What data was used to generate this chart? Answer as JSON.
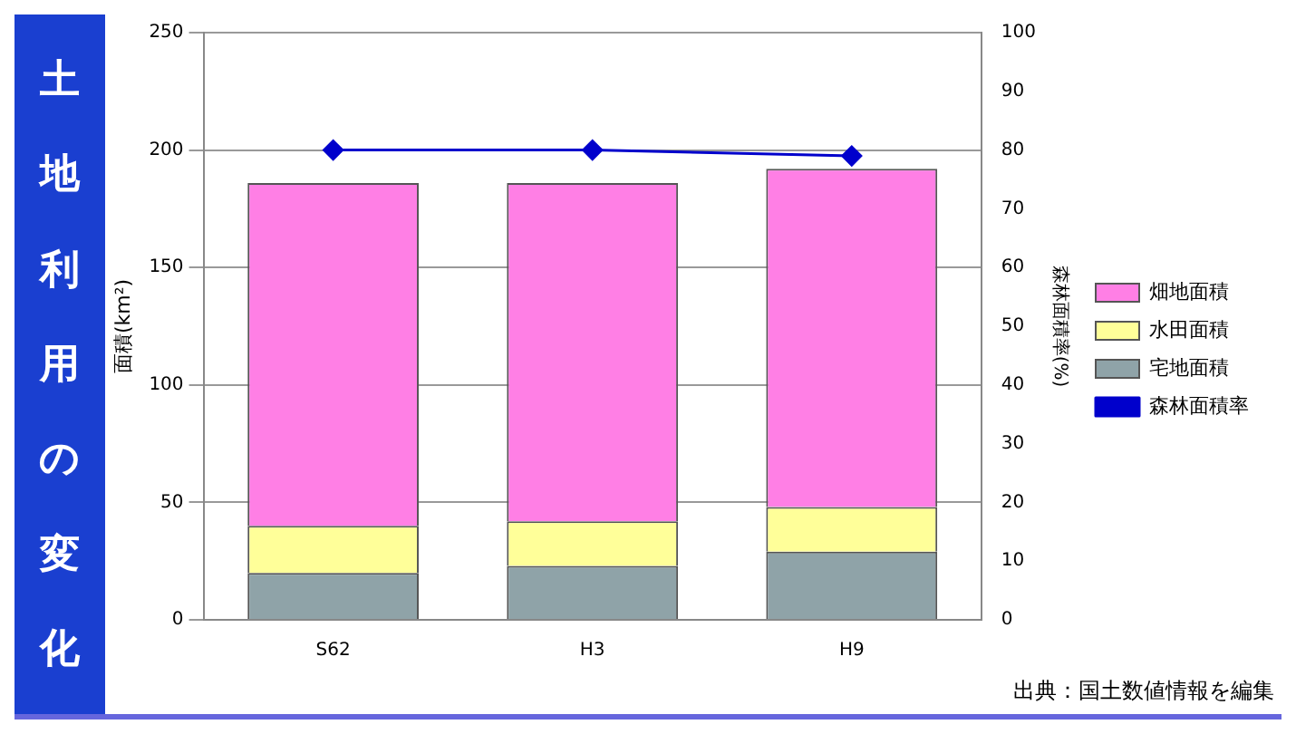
{
  "chart_data": {
    "type": "bar",
    "title": "土地利用の変化",
    "ylabel": "面積(km²)",
    "y2label": "森林面積率(%)",
    "annotations": [
      "出典：国土数値情報を編集"
    ],
    "categories": [
      "S62",
      "H3",
      "H9"
    ],
    "stacked": true,
    "series": [
      {
        "name": "宅地面積",
        "color": "#8fa3a8",
        "values": [
          20,
          23,
          29
        ]
      },
      {
        "name": "水田面積",
        "color": "#ffff99",
        "values": [
          20,
          19,
          19
        ]
      },
      {
        "name": "畑地面積",
        "color": "#ff7fe5",
        "values": [
          146,
          144,
          144
        ]
      },
      {
        "name": "森林面積率",
        "type": "line",
        "axis": "y2",
        "color": "#0000cc",
        "values": [
          80,
          80,
          79
        ],
        "marker": "diamond"
      }
    ],
    "ylim": [
      0,
      250
    ],
    "yticks": [
      0,
      50,
      100,
      150,
      200,
      250
    ],
    "y2lim": [
      0,
      100
    ],
    "y2ticks": [
      0,
      10,
      20,
      30,
      40,
      50,
      60,
      70,
      80,
      90,
      100
    ],
    "grid": "y",
    "legend": "right"
  }
}
